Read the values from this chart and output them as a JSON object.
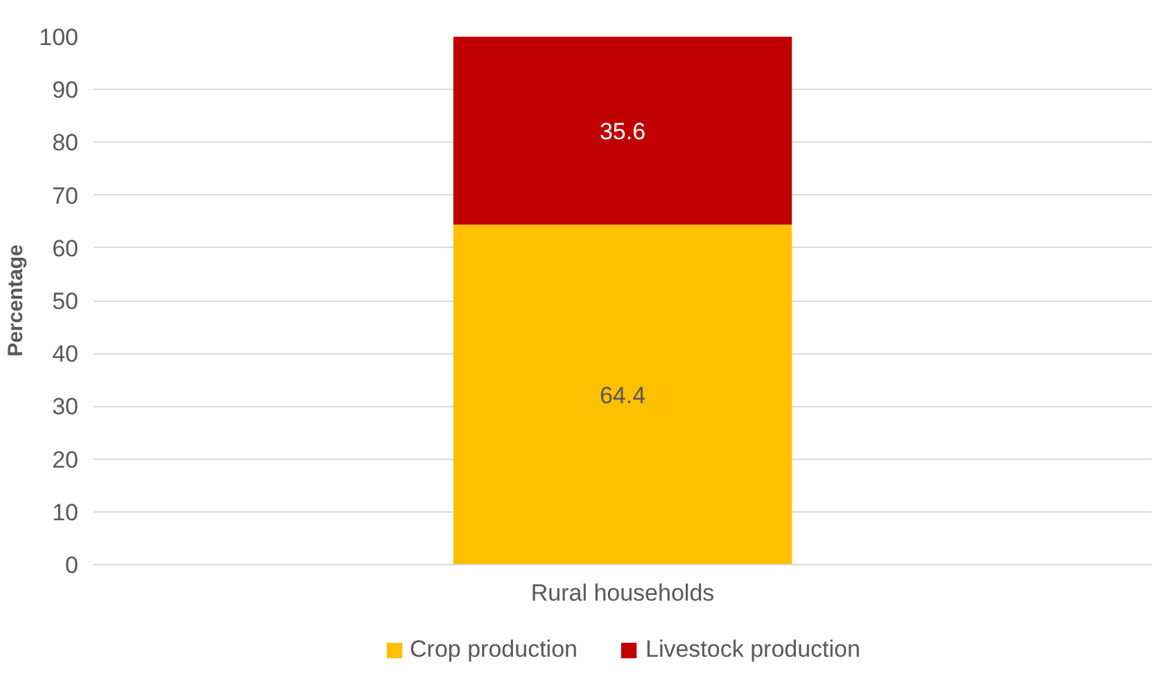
{
  "chart_data": {
    "type": "bar",
    "stacked": true,
    "ylabel": "Percentage",
    "categories": [
      "Rural households"
    ],
    "series": [
      {
        "name": "Crop production",
        "color": "#ffc000",
        "values": [
          64.4
        ]
      },
      {
        "name": "Livestock production",
        "color": "#c00000",
        "values": [
          35.6
        ]
      }
    ],
    "ylim": [
      0,
      100
    ],
    "yticks": [
      0,
      10,
      20,
      30,
      40,
      50,
      60,
      70,
      80,
      90,
      100
    ],
    "grid": "y",
    "legend": "bottom",
    "data_labels": true
  }
}
